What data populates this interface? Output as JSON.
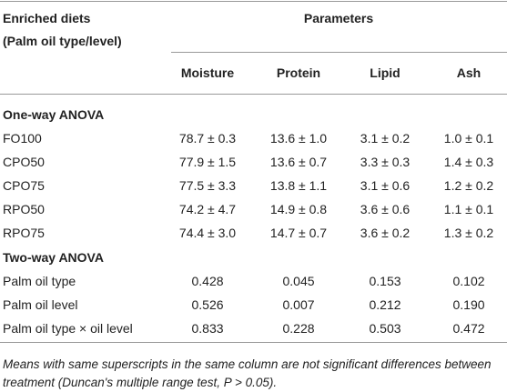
{
  "header": {
    "row_label": [
      "Enriched diets",
      "(Palm oil type/level)"
    ],
    "group": "Parameters",
    "columns": [
      "Moisture",
      "Protein",
      "Lipid",
      "Ash"
    ]
  },
  "sections": [
    {
      "title": "One-way ANOVA",
      "rows": [
        {
          "label": "FO100",
          "cells": [
            "78.7 ± 0.3",
            "13.6 ± 1.0",
            "3.1 ± 0.2",
            "1.0 ± 0.1"
          ]
        },
        {
          "label": "CPO50",
          "cells": [
            "77.9 ± 1.5",
            "13.6 ± 0.7",
            "3.3 ± 0.3",
            "1.4 ± 0.3"
          ]
        },
        {
          "label": "CPO75",
          "cells": [
            "77.5 ± 3.3",
            "13.8 ± 1.1",
            "3.1 ± 0.6",
            "1.2 ± 0.2"
          ]
        },
        {
          "label": "RPO50",
          "cells": [
            "74.2 ± 4.7",
            "14.9 ± 0.8",
            "3.6 ± 0.6",
            "1.1 ± 0.1"
          ]
        },
        {
          "label": "RPO75",
          "cells": [
            "74.4 ± 3.0",
            "14.7 ± 0.7",
            "3.6 ± 0.2",
            "1.3 ± 0.2"
          ]
        }
      ]
    },
    {
      "title": "Two-way ANOVA",
      "rows": [
        {
          "label": "Palm oil type",
          "cells": [
            "0.428",
            "0.045",
            "0.153",
            "0.102"
          ]
        },
        {
          "label": "Palm oil level",
          "cells": [
            "0.526",
            "0.007",
            "0.212",
            "0.190"
          ]
        },
        {
          "label": "Palm oil type × oil level",
          "cells": [
            "0.833",
            "0.228",
            "0.503",
            "0.472"
          ]
        }
      ]
    }
  ],
  "footnote": "Means with same superscripts in the same column are not significant differences between treatment (Duncan's multiple range test, P > 0.05)."
}
